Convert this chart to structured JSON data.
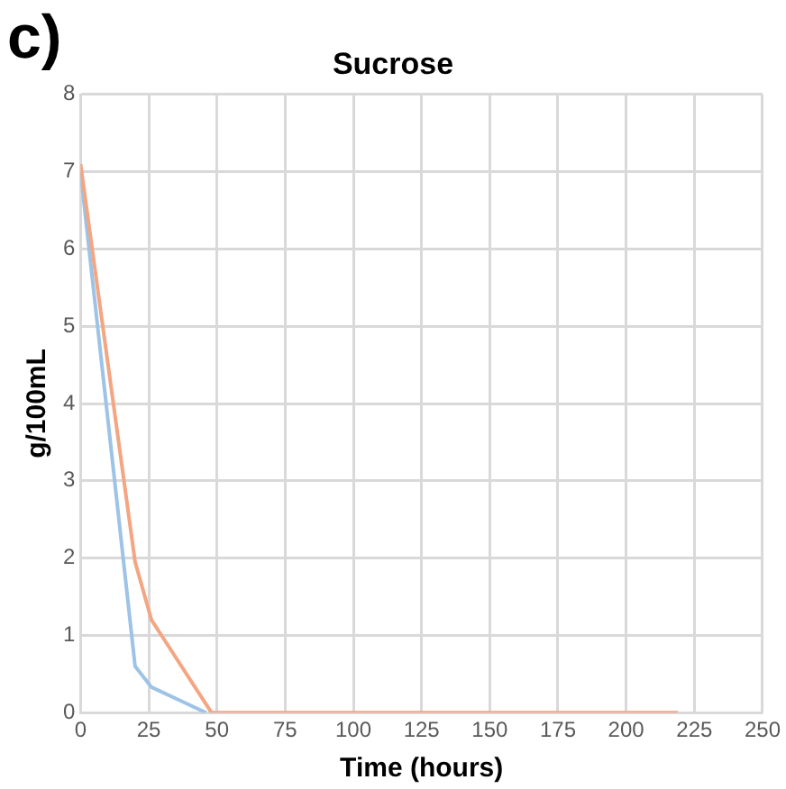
{
  "chart_data": {
    "type": "line",
    "title": "Sucrose",
    "xlabel": "Time (hours)",
    "ylabel": "g/100mL",
    "annotations": [
      "c)"
    ],
    "x": [
      0,
      20,
      26,
      48,
      69,
      74,
      94,
      100,
      165,
      170,
      189,
      194,
      214,
      219
    ],
    "series": [
      {
        "color": "#9dc3e6",
        "x": [
          0,
          20,
          26,
          46
        ],
        "values": [
          7.0,
          0.6,
          0.33,
          0
        ]
      },
      {
        "color": "#f4a582",
        "values": [
          7.1,
          1.95,
          1.2,
          0,
          0,
          0,
          0,
          0,
          0,
          0,
          0,
          0,
          0,
          0
        ]
      }
    ],
    "xlim": [
      0,
      250
    ],
    "xticks": [
      0,
      25,
      50,
      75,
      100,
      125,
      150,
      175,
      200,
      225,
      250
    ],
    "ylim": [
      0,
      8
    ],
    "yticks": [
      0,
      1,
      2,
      3,
      4,
      5,
      6,
      7,
      8
    ],
    "grid": true,
    "legend": false,
    "marker": "none",
    "line_style": "solid"
  }
}
